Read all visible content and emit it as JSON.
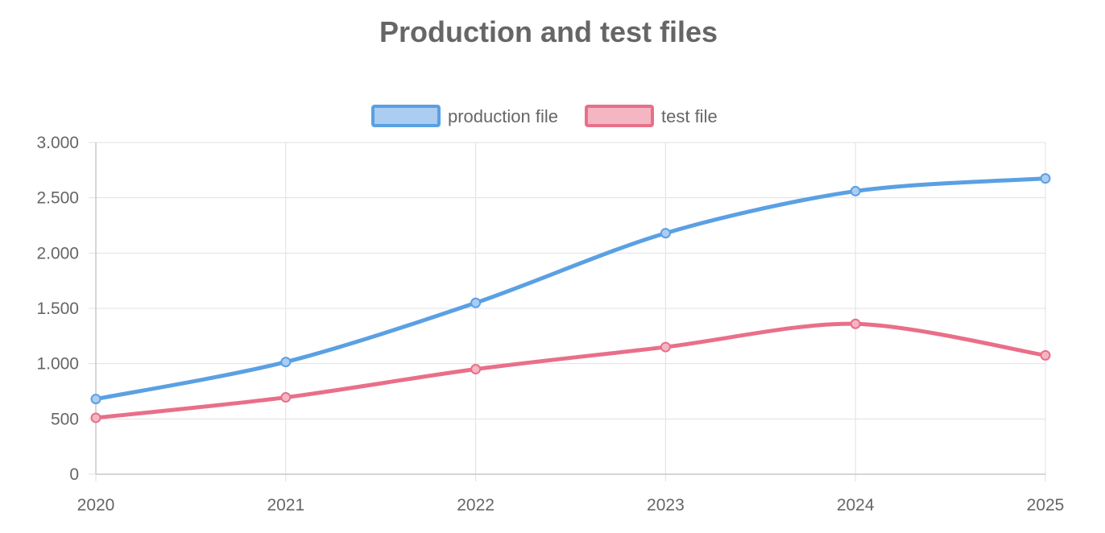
{
  "chart_data": {
    "type": "line",
    "title": "Production and test files",
    "categories": [
      "2020",
      "2021",
      "2022",
      "2023",
      "2024",
      "2025"
    ],
    "series": [
      {
        "name": "production file",
        "values": [
          680,
          1015,
          1550,
          2180,
          2560,
          2675
        ],
        "color": "#5aa0e3",
        "fill": "#abcdf1"
      },
      {
        "name": "test file",
        "values": [
          510,
          695,
          950,
          1150,
          1360,
          1075
        ],
        "color": "#e96f88",
        "fill": "#f4b6c3"
      }
    ],
    "ylim": [
      0,
      3000
    ],
    "yticks": [
      0,
      500,
      1000,
      1500,
      2000,
      2500,
      3000
    ],
    "ytick_labels": [
      "0",
      "500",
      "1.000",
      "1.500",
      "2.000",
      "2.500",
      "3.000"
    ],
    "xlabel": "",
    "ylabel": "",
    "grid": true,
    "legend_position": "top-center"
  }
}
